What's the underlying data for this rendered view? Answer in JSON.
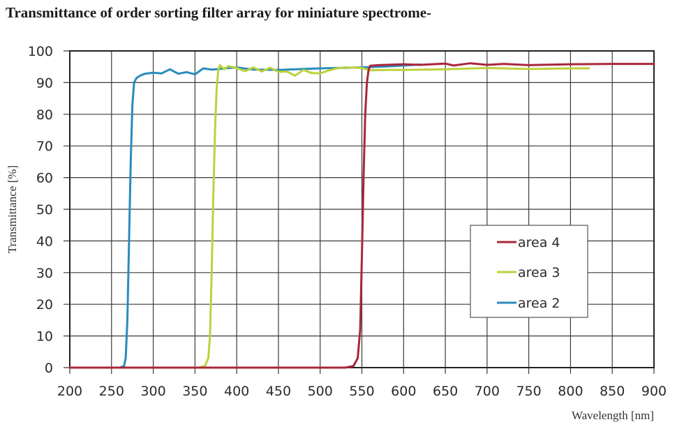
{
  "title": "Transmittance of order sorting filter array for miniature spectrome-",
  "chart_data": {
    "type": "line",
    "title": "Transmittance of order sorting filter array for miniature spectrome-",
    "xlabel": "Wavelength [nm]",
    "ylabel": "Transmittance [%]",
    "xlim": [
      200,
      900
    ],
    "ylim": [
      0,
      100
    ],
    "xticks": [
      200,
      250,
      300,
      350,
      400,
      450,
      500,
      550,
      600,
      650,
      700,
      750,
      800,
      850,
      900
    ],
    "yticks": [
      0,
      10,
      20,
      30,
      40,
      50,
      60,
      70,
      80,
      90,
      100
    ],
    "grid": true,
    "legend_position": "lower right (inside plot)",
    "legend": [
      "area 4",
      "area 3",
      "area 2"
    ],
    "series": [
      {
        "name": "area 4",
        "color": "#a8273a",
        "x": [
          200,
          530,
          540,
          545,
          548,
          550,
          552,
          554,
          556,
          558,
          560,
          570,
          600,
          620,
          650,
          660,
          680,
          700,
          720,
          750,
          800,
          850,
          900
        ],
        "y": [
          0,
          0,
          0.5,
          3,
          12,
          35,
          60,
          80,
          90,
          94,
          95.3,
          95.5,
          95.8,
          95.6,
          96,
          95.4,
          96.1,
          95.6,
          95.9,
          95.5,
          95.8,
          95.9,
          95.9
        ]
      },
      {
        "name": "area 3",
        "color": "#bcd23c",
        "x": [
          265,
          355,
          362,
          366,
          368,
          370,
          372,
          374,
          376,
          378,
          380,
          385,
          390,
          400,
          410,
          420,
          430,
          440,
          450,
          460,
          470,
          480,
          490,
          500,
          510,
          520,
          530,
          550,
          560,
          580,
          600,
          650,
          700,
          750,
          800,
          822
        ],
        "y": [
          0,
          0,
          0.5,
          3,
          10,
          30,
          55,
          75,
          88,
          94,
          95.5,
          94.2,
          95.2,
          94.6,
          93.6,
          94.8,
          93.5,
          94.7,
          93.4,
          93.5,
          92.2,
          94,
          93,
          92.9,
          93.8,
          94.5,
          94.8,
          94.6,
          93.9,
          94,
          94,
          94.2,
          94.6,
          94.3,
          94.5,
          94.5
        ]
      },
      {
        "name": "area 2",
        "color": "#2a8bbd",
        "x": [
          200,
          260,
          265,
          267,
          269,
          271,
          273,
          275,
          277,
          280,
          285,
          290,
          300,
          310,
          320,
          330,
          340,
          350,
          360,
          370,
          380,
          390,
          400,
          420,
          450,
          480,
          500,
          550,
          580,
          600,
          620
        ],
        "y": [
          0,
          0,
          0.5,
          3,
          15,
          40,
          65,
          83,
          90,
          91.5,
          92.3,
          92.8,
          93.1,
          92.9,
          94.2,
          92.8,
          93.3,
          92.6,
          94.5,
          94.1,
          94.3,
          94.6,
          94.8,
          94.1,
          94,
          94.3,
          94.5,
          94.8,
          95.1,
          95.4,
          95.7
        ]
      }
    ]
  },
  "legend": {
    "items": [
      {
        "label": "area 4",
        "color": "#a8273a"
      },
      {
        "label": "area 3",
        "color": "#bcd23c"
      },
      {
        "label": "area 2",
        "color": "#2a8bbd"
      }
    ]
  }
}
